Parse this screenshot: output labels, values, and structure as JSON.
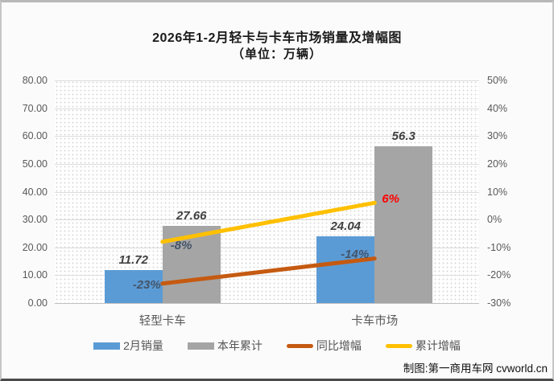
{
  "frame": {
    "credit": "制图:第一商用车网 cvworld.cn"
  },
  "chart_data": {
    "type": "bar",
    "title": "2026年1-2月轻卡与卡车市场销量及增幅图",
    "subtitle": "（单位：万辆）",
    "categories": [
      "轻型卡车",
      "卡车市场"
    ],
    "series": [
      {
        "name": "2月销量",
        "kind": "bar",
        "axis": "left",
        "color": "#5B9BD5",
        "values": [
          11.72,
          24.04
        ],
        "labels": [
          "11.72",
          "24.04"
        ]
      },
      {
        "name": "本年累计",
        "kind": "bar",
        "axis": "left",
        "color": "#A5A5A5",
        "values": [
          27.66,
          56.3
        ],
        "labels": [
          "27.66",
          "56.3"
        ]
      },
      {
        "name": "同比增幅",
        "kind": "line",
        "axis": "right",
        "color": "#C55A11",
        "values": [
          -23,
          -14
        ],
        "labels": [
          {
            "text": "-23%",
            "color": "#44546A",
            "anchor": "right",
            "dx": 2,
            "dy": 2
          },
          {
            "text": "-14%",
            "color": "#44546A",
            "anchor": "right",
            "dx": -3,
            "dy": -5
          }
        ]
      },
      {
        "name": "累计增幅",
        "kind": "line",
        "axis": "right",
        "color": "#FFC000",
        "values": [
          -8,
          6
        ],
        "labels": [
          {
            "text": "-8%",
            "color": "#44546A",
            "anchor": "left",
            "dx": 10,
            "dy": 5
          },
          {
            "text": "6%",
            "color": "#FF0000",
            "anchor": "left",
            "dx": 9,
            "dy": -4
          }
        ]
      }
    ],
    "left_axis": {
      "min": 0,
      "max": 80,
      "ticks": [
        "80.00",
        "70.00",
        "60.00",
        "50.00",
        "40.00",
        "30.00",
        "20.00",
        "10.00",
        "0.00"
      ]
    },
    "right_axis": {
      "min": -30,
      "max": 50,
      "ticks": [
        "50%",
        "40%",
        "30%",
        "20%",
        "10%",
        "0%",
        "-10%",
        "-20%",
        "-30%"
      ]
    },
    "grid": true,
    "legend_position": "bottom",
    "colors": {
      "grid": "#DCDCDC",
      "axis_line": "#BFBFBF",
      "tick_text": "#595959",
      "value_label": "#404040",
      "title_text": "#1A1A1A"
    }
  }
}
